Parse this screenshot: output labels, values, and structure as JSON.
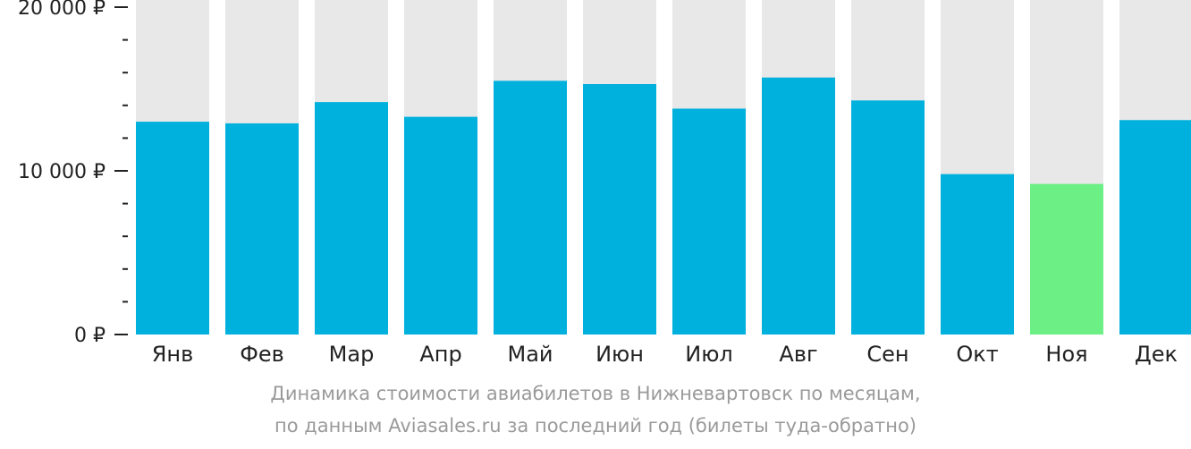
{
  "chart_data": {
    "type": "bar",
    "categories": [
      "Янв",
      "Фев",
      "Мар",
      "Апр",
      "Май",
      "Июн",
      "Июл",
      "Авг",
      "Сен",
      "Окт",
      "Ноя",
      "Дек"
    ],
    "series": [
      {
        "values": [
          13000,
          12900,
          14200,
          13300,
          15500,
          15300,
          13800,
          15700,
          14300,
          9800,
          9200,
          13100
        ]
      }
    ],
    "ylim": [
      0,
      20000
    ],
    "yticks": [
      {
        "value": 0,
        "label": "0 ₽"
      },
      {
        "value": 10000,
        "label": "10 000 ₽"
      },
      {
        "value": 20000,
        "label": "20 000 ₽"
      }
    ],
    "highlight_category": "Ноя",
    "grid": false,
    "colors": {
      "bar": "#00b0dd",
      "highlight": "#6cef84",
      "background_bar": "#e8e8e8",
      "axis_text": "#222222"
    }
  },
  "caption": {
    "line1": "Динамика стоимости авиабилетов в Нижневартовск по месяцам,",
    "line2": "по данным Aviasales.ru за последний год (билеты туда-обратно)"
  }
}
